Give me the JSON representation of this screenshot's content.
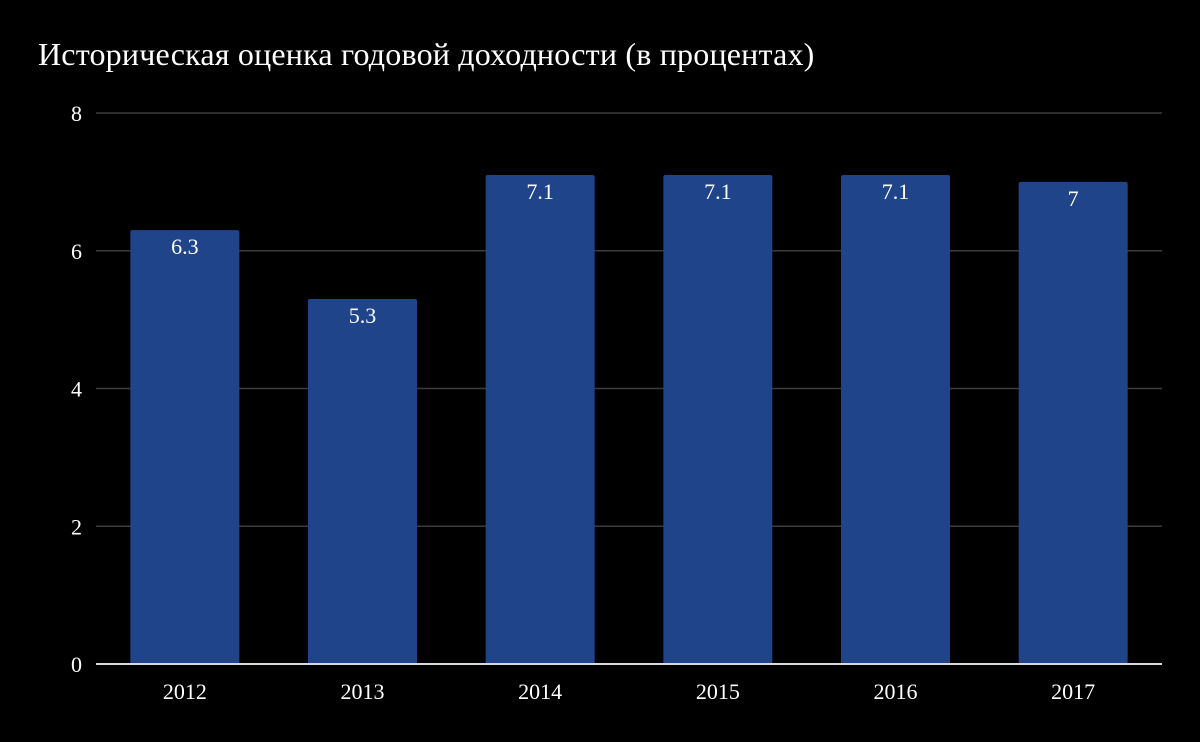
{
  "chart_data": {
    "type": "bar",
    "title": "Историческая оценка годовой доходности (в процентах)",
    "categories": [
      "2012",
      "2013",
      "2014",
      "2015",
      "2016",
      "2017"
    ],
    "values": [
      6.3,
      5.3,
      7.1,
      7.1,
      7.1,
      7
    ],
    "data_labels": [
      "6.3",
      "5.3",
      "7.1",
      "7.1",
      "7.1",
      "7"
    ],
    "xlabel": "",
    "ylabel": "",
    "ylim": [
      0,
      8
    ],
    "yticks": [
      0,
      2,
      4,
      6,
      8
    ],
    "grid": true,
    "legend": "none",
    "colors": {
      "background": "#000000",
      "bar": "#1f4489",
      "gridline": "#3c3c3c",
      "axis": "#d9d9d9",
      "text": "#ffffff"
    }
  }
}
